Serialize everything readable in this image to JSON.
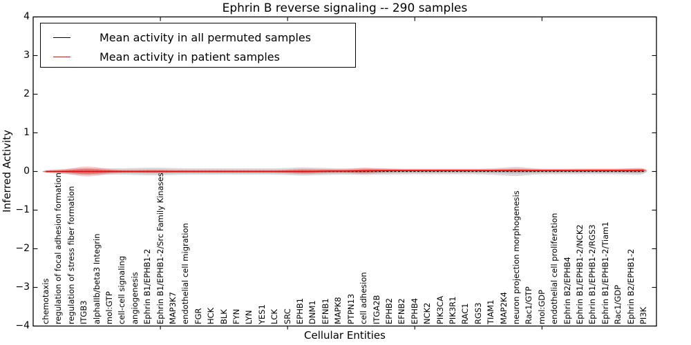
{
  "title": "Ephrin B reverse signaling -- 290 samples",
  "legend": {
    "items": [
      {
        "label": "Mean activity in all permuted samples",
        "color": "#000000"
      },
      {
        "label": "Mean activity in patient samples",
        "color": "#ff0000"
      }
    ]
  },
  "chart_data": {
    "type": "area",
    "title": "Ephrin B reverse signaling -- 290 samples",
    "xlabel": "Cellular Entities",
    "ylabel": "Inferred Activity",
    "ylim": [
      -4,
      4
    ],
    "yticks": [
      "4",
      "3",
      "2",
      "1",
      "0",
      "−1",
      "−2",
      "−3",
      "−4"
    ],
    "grid": false,
    "legend_position": "upper left",
    "categories": [
      "chemotaxis",
      "regulation of focal adhesion formation",
      "regulation of stress fiber formation",
      "ITGB3",
      "alphaIIb/beta3 Integrin",
      "mol:GTP",
      "cell-cell signaling",
      "angiogenesis",
      "Ephrin B1/EPHB1-2",
      "Ephrin B1/EPHB1-2/Src Family Kinases",
      "MAP3K7",
      "endothelial cell migration",
      "FGR",
      "HCK",
      "BLK",
      "FYN",
      "LYN",
      "YES1",
      "LCK",
      "SRC",
      "EPHB1",
      "DNM1",
      "EFNB1",
      "MAPK8",
      "PTPN13",
      "cell adhesion",
      "ITGA2B",
      "EPHB2",
      "EFNB2",
      "EPHB4",
      "NCK2",
      "PIK3CA",
      "PIK3R1",
      "RAC1",
      "RGS3",
      "TIAM1",
      "MAP2K4",
      "neuron projection morphogenesis",
      "Rac1/GTP",
      "mol:GDP",
      "endothelial cell proliferation",
      "Ephrin B2/EPHB4",
      "Ephrin B1/EPHB1-2/NCK2",
      "Ephrin B1/EPHB1-2/RGS3",
      "Ephrin B1/EPHB1-2/Tiam1",
      "Rac1/GDP",
      "Ephrin B2/EPHB1-2",
      "PI3K"
    ],
    "series": [
      {
        "name": "Mean activity in all permuted samples",
        "color": "#000000",
        "line_style": "dashed",
        "band_color": "rgba(128,128,128,0.30)",
        "band_inner_color": "rgba(128,128,128,0.22)",
        "mean": [
          0,
          0,
          0,
          0,
          0,
          0,
          0,
          0,
          0,
          0,
          0,
          0,
          0,
          0,
          0,
          0,
          0,
          0,
          0,
          0,
          0,
          0,
          0,
          0,
          0,
          0,
          0,
          0,
          0,
          0,
          0,
          0,
          0,
          0,
          0,
          0,
          0,
          0,
          0,
          0,
          0,
          0,
          0,
          0,
          0,
          0,
          0,
          0
        ],
        "std": [
          0.045,
          0.054,
          0.08,
          0.098,
          0.089,
          0.08,
          0.08,
          0.089,
          0.098,
          0.098,
          0.089,
          0.08,
          0.08,
          0.08,
          0.08,
          0.08,
          0.08,
          0.08,
          0.08,
          0.089,
          0.107,
          0.098,
          0.089,
          0.08,
          0.08,
          0.089,
          0.08,
          0.08,
          0.071,
          0.071,
          0.071,
          0.071,
          0.071,
          0.071,
          0.071,
          0.08,
          0.098,
          0.125,
          0.089,
          0.071,
          0.071,
          0.071,
          0.071,
          0.071,
          0.071,
          0.071,
          0.08,
          0.089
        ]
      },
      {
        "name": "Mean activity in patient samples",
        "color": "#ff0000",
        "line_style": "solid",
        "band_color": "rgba(255,0,0,0.16)",
        "band_inner_color": "rgba(255,0,0,0.30)",
        "mean": [
          0,
          0,
          0,
          0,
          0,
          0,
          0,
          0,
          0,
          0,
          0,
          0,
          0,
          0,
          0,
          0,
          0,
          0,
          0,
          0,
          0,
          0,
          0.01,
          0.01,
          0.01,
          0.015,
          0.02,
          0.025,
          0.025,
          0.025,
          0.025,
          0.025,
          0.025,
          0.025,
          0.025,
          0.025,
          0.025,
          0.025,
          0.025,
          0.025,
          0.025,
          0.025,
          0.025,
          0.025,
          0.025,
          0.025,
          0.025,
          0.03
        ],
        "std": [
          0.027,
          0.036,
          0.071,
          0.143,
          0.116,
          0.054,
          0.036,
          0.036,
          0.045,
          0.045,
          0.036,
          0.036,
          0.036,
          0.036,
          0.036,
          0.036,
          0.036,
          0.036,
          0.036,
          0.045,
          0.071,
          0.063,
          0.054,
          0.045,
          0.054,
          0.089,
          0.063,
          0.045,
          0.036,
          0.036,
          0.036,
          0.036,
          0.036,
          0.036,
          0.036,
          0.036,
          0.045,
          0.054,
          0.045,
          0.036,
          0.036,
          0.036,
          0.045,
          0.045,
          0.045,
          0.045,
          0.054,
          0.063
        ]
      }
    ]
  }
}
